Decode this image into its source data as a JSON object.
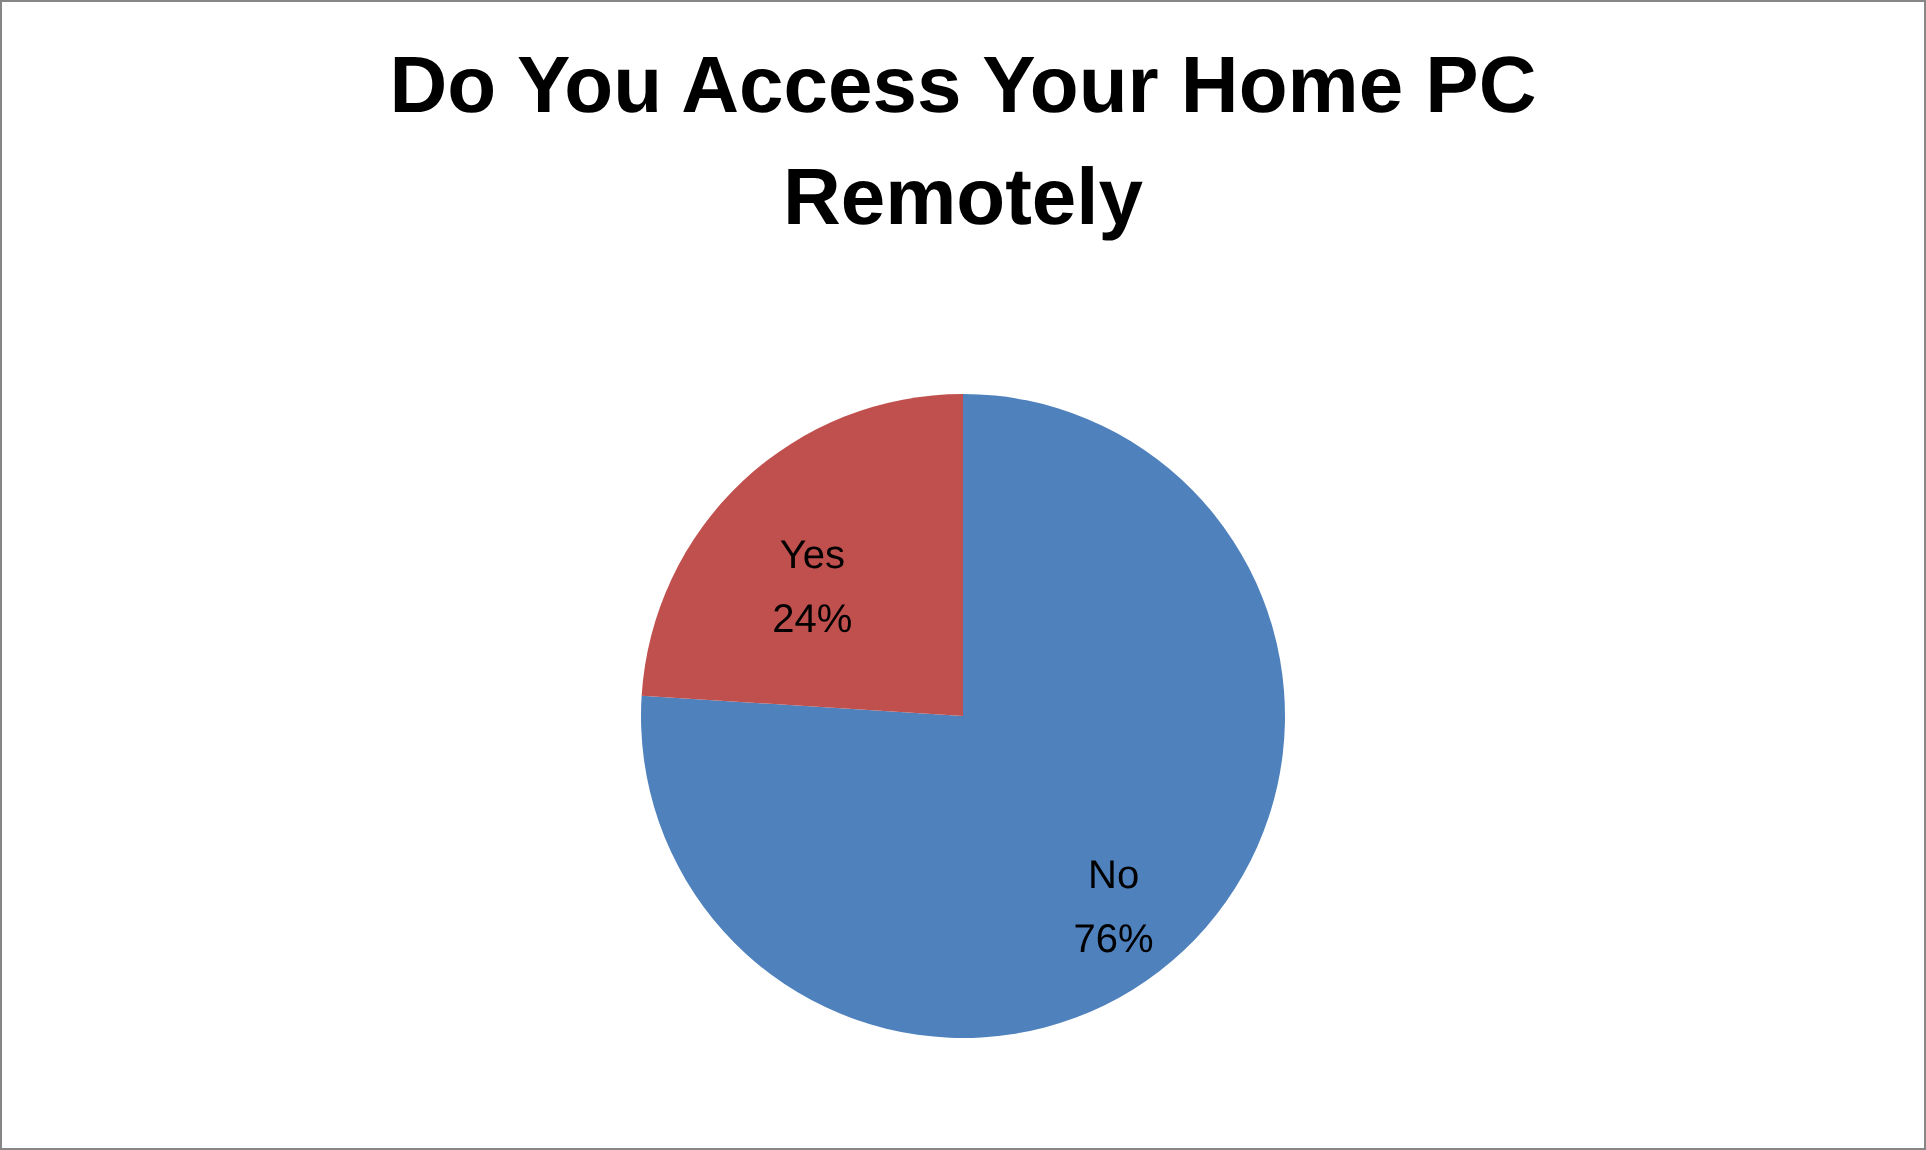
{
  "chart_data": {
    "type": "pie",
    "title": "Do You Access Your Home PC Remotely",
    "categories": [
      "No",
      "Yes"
    ],
    "values": [
      76,
      24
    ],
    "colors": [
      "#4f81bd",
      "#c0504d"
    ],
    "value_labels": [
      "76%",
      "24%"
    ],
    "legend": false
  }
}
